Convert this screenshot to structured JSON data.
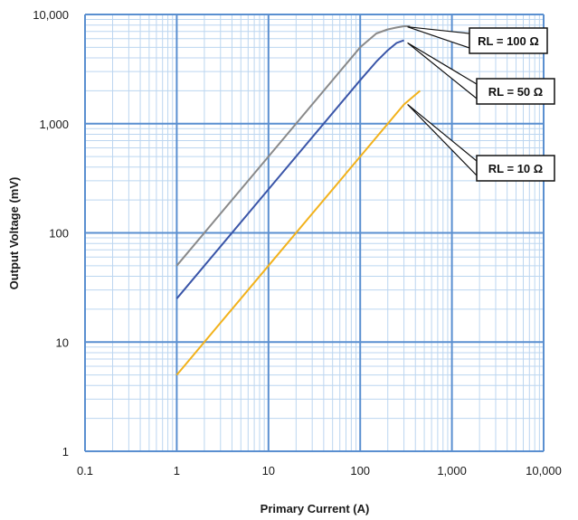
{
  "chart_data": {
    "type": "line",
    "xlabel": "Primary Current (A)",
    "ylabel": "Output Voltage (mV)",
    "x_scale": "log",
    "y_scale": "log",
    "xlim": [
      0.1,
      10000
    ],
    "ylim": [
      1,
      10000
    ],
    "x_tick_labels": [
      "0.1",
      "1",
      "10",
      "100",
      "1,000",
      "10,000"
    ],
    "y_tick_labels": [
      "1",
      "10",
      "100",
      "1,000",
      "10,000"
    ],
    "grid": true,
    "colors": {
      "major_grid": "#5a8fd0",
      "minor_grid": "#bcd6f0"
    },
    "series": [
      {
        "name": "RL = 100 Ω",
        "color": "#8a8a8a",
        "x": [
          1,
          10,
          100,
          150,
          200,
          250,
          300,
          350
        ],
        "y": [
          50,
          500,
          5000,
          6700,
          7300,
          7600,
          7800,
          7800
        ]
      },
      {
        "name": "RL = 50 Ω",
        "color": "#3a55a8",
        "x": [
          1,
          10,
          100,
          150,
          200,
          250,
          300
        ],
        "y": [
          25,
          250,
          2500,
          3700,
          4700,
          5500,
          5800
        ]
      },
      {
        "name": "RL = 10 Ω",
        "color": "#f2b21c",
        "x": [
          1,
          10,
          100,
          300,
          450
        ],
        "y": [
          5,
          50,
          500,
          1500,
          2000
        ]
      }
    ],
    "annotations": [
      {
        "text": "RL = 100 Ω",
        "points_to_series": 0,
        "at_x": 300,
        "at_y": 7700
      },
      {
        "text": "RL = 50 Ω",
        "points_to_series": 1,
        "at_x": 300,
        "at_y": 5500
      },
      {
        "text": "RL = 10 Ω",
        "points_to_series": 2,
        "at_x": 300,
        "at_y": 1500
      }
    ]
  }
}
